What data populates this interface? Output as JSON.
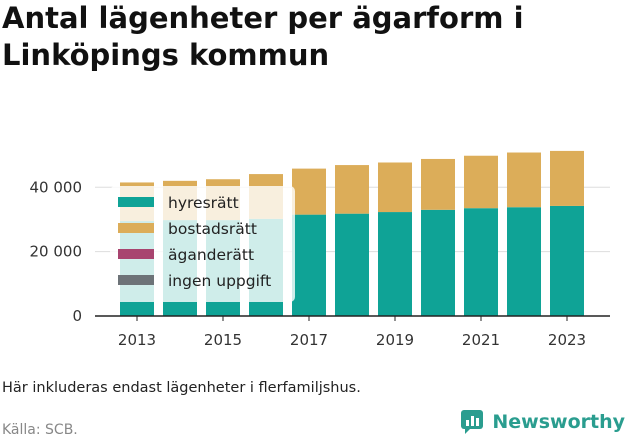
{
  "title": "Antal lägenheter per ägarform i Linköpings kommun",
  "note": "Här inkluderas endast lägenheter i flerfamiljshus.",
  "source": "Källa: SCB.",
  "brand": "Newsworthy",
  "colors": {
    "hyresratt": "#0fa396",
    "bostadsratt": "#dcad59",
    "aganderatt": "#a8446f",
    "ingen_uppgift": "#6d7378",
    "grid": "#dddddd",
    "brand": "#2a9d8f"
  },
  "chart_data": {
    "type": "bar",
    "stacked": true,
    "x": [
      2013,
      2014,
      2015,
      2016,
      2017,
      2018,
      2019,
      2020,
      2021,
      2022,
      2023
    ],
    "x_tick_labels": [
      "2013",
      "2015",
      "2017",
      "2019",
      "2021",
      "2023"
    ],
    "y_ticks": [
      0,
      20000,
      40000
    ],
    "y_tick_labels": [
      "0",
      "20 000",
      "40 000"
    ],
    "ylim": [
      0,
      55000
    ],
    "grid": true,
    "legend_position": "top-left",
    "series": [
      {
        "name": "hyresrätt",
        "color": "#0fa396",
        "values": [
          29500,
          29800,
          29800,
          30200,
          31500,
          31800,
          32300,
          33000,
          33500,
          33800,
          34200
        ]
      },
      {
        "name": "bostadsrätt",
        "color": "#dcad59",
        "values": [
          12000,
          12200,
          12700,
          13900,
          14300,
          15100,
          15400,
          15800,
          16300,
          17000,
          17100
        ]
      },
      {
        "name": "äganderätt",
        "color": "#a8446f",
        "values": [
          0,
          0,
          0,
          0,
          0,
          0,
          0,
          0,
          0,
          0,
          0
        ]
      },
      {
        "name": "ingen uppgift",
        "color": "#6d7378",
        "values": [
          0,
          0,
          0,
          0,
          0,
          0,
          0,
          0,
          0,
          0,
          0
        ]
      }
    ]
  }
}
